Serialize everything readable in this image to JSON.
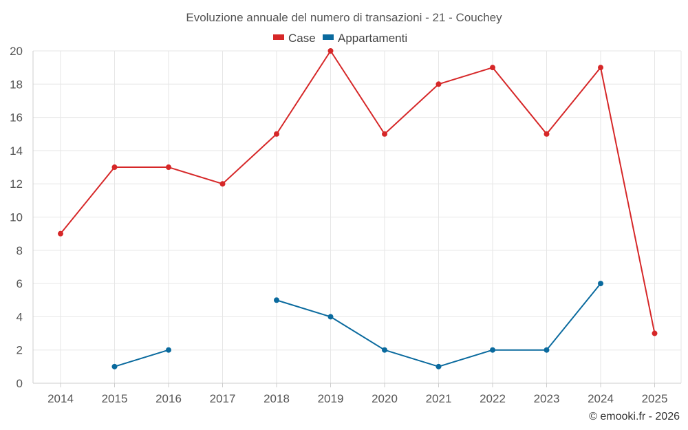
{
  "chart_data": {
    "type": "line",
    "title": "Evoluzione annuale del numero di transazioni - 21 - Couchey",
    "categories": [
      "2014",
      "2015",
      "2016",
      "2017",
      "2018",
      "2019",
      "2020",
      "2021",
      "2022",
      "2023",
      "2024",
      "2025"
    ],
    "series": [
      {
        "name": "Case",
        "color": "#d62728",
        "values": [
          9,
          13,
          13,
          12,
          15,
          20,
          15,
          18,
          19,
          15,
          19,
          3
        ]
      },
      {
        "name": "Appartamenti",
        "color": "#0a6a9e",
        "values": [
          null,
          1,
          2,
          null,
          5,
          4,
          2,
          1,
          2,
          2,
          6,
          null
        ]
      }
    ],
    "yticks": [
      0,
      2,
      4,
      6,
      8,
      10,
      12,
      14,
      16,
      18,
      20
    ],
    "ylim": [
      0,
      20
    ],
    "xlabel": "",
    "ylabel": "",
    "grid": true,
    "legend": "top-center"
  },
  "credit": "© emooki.fr - 2026"
}
